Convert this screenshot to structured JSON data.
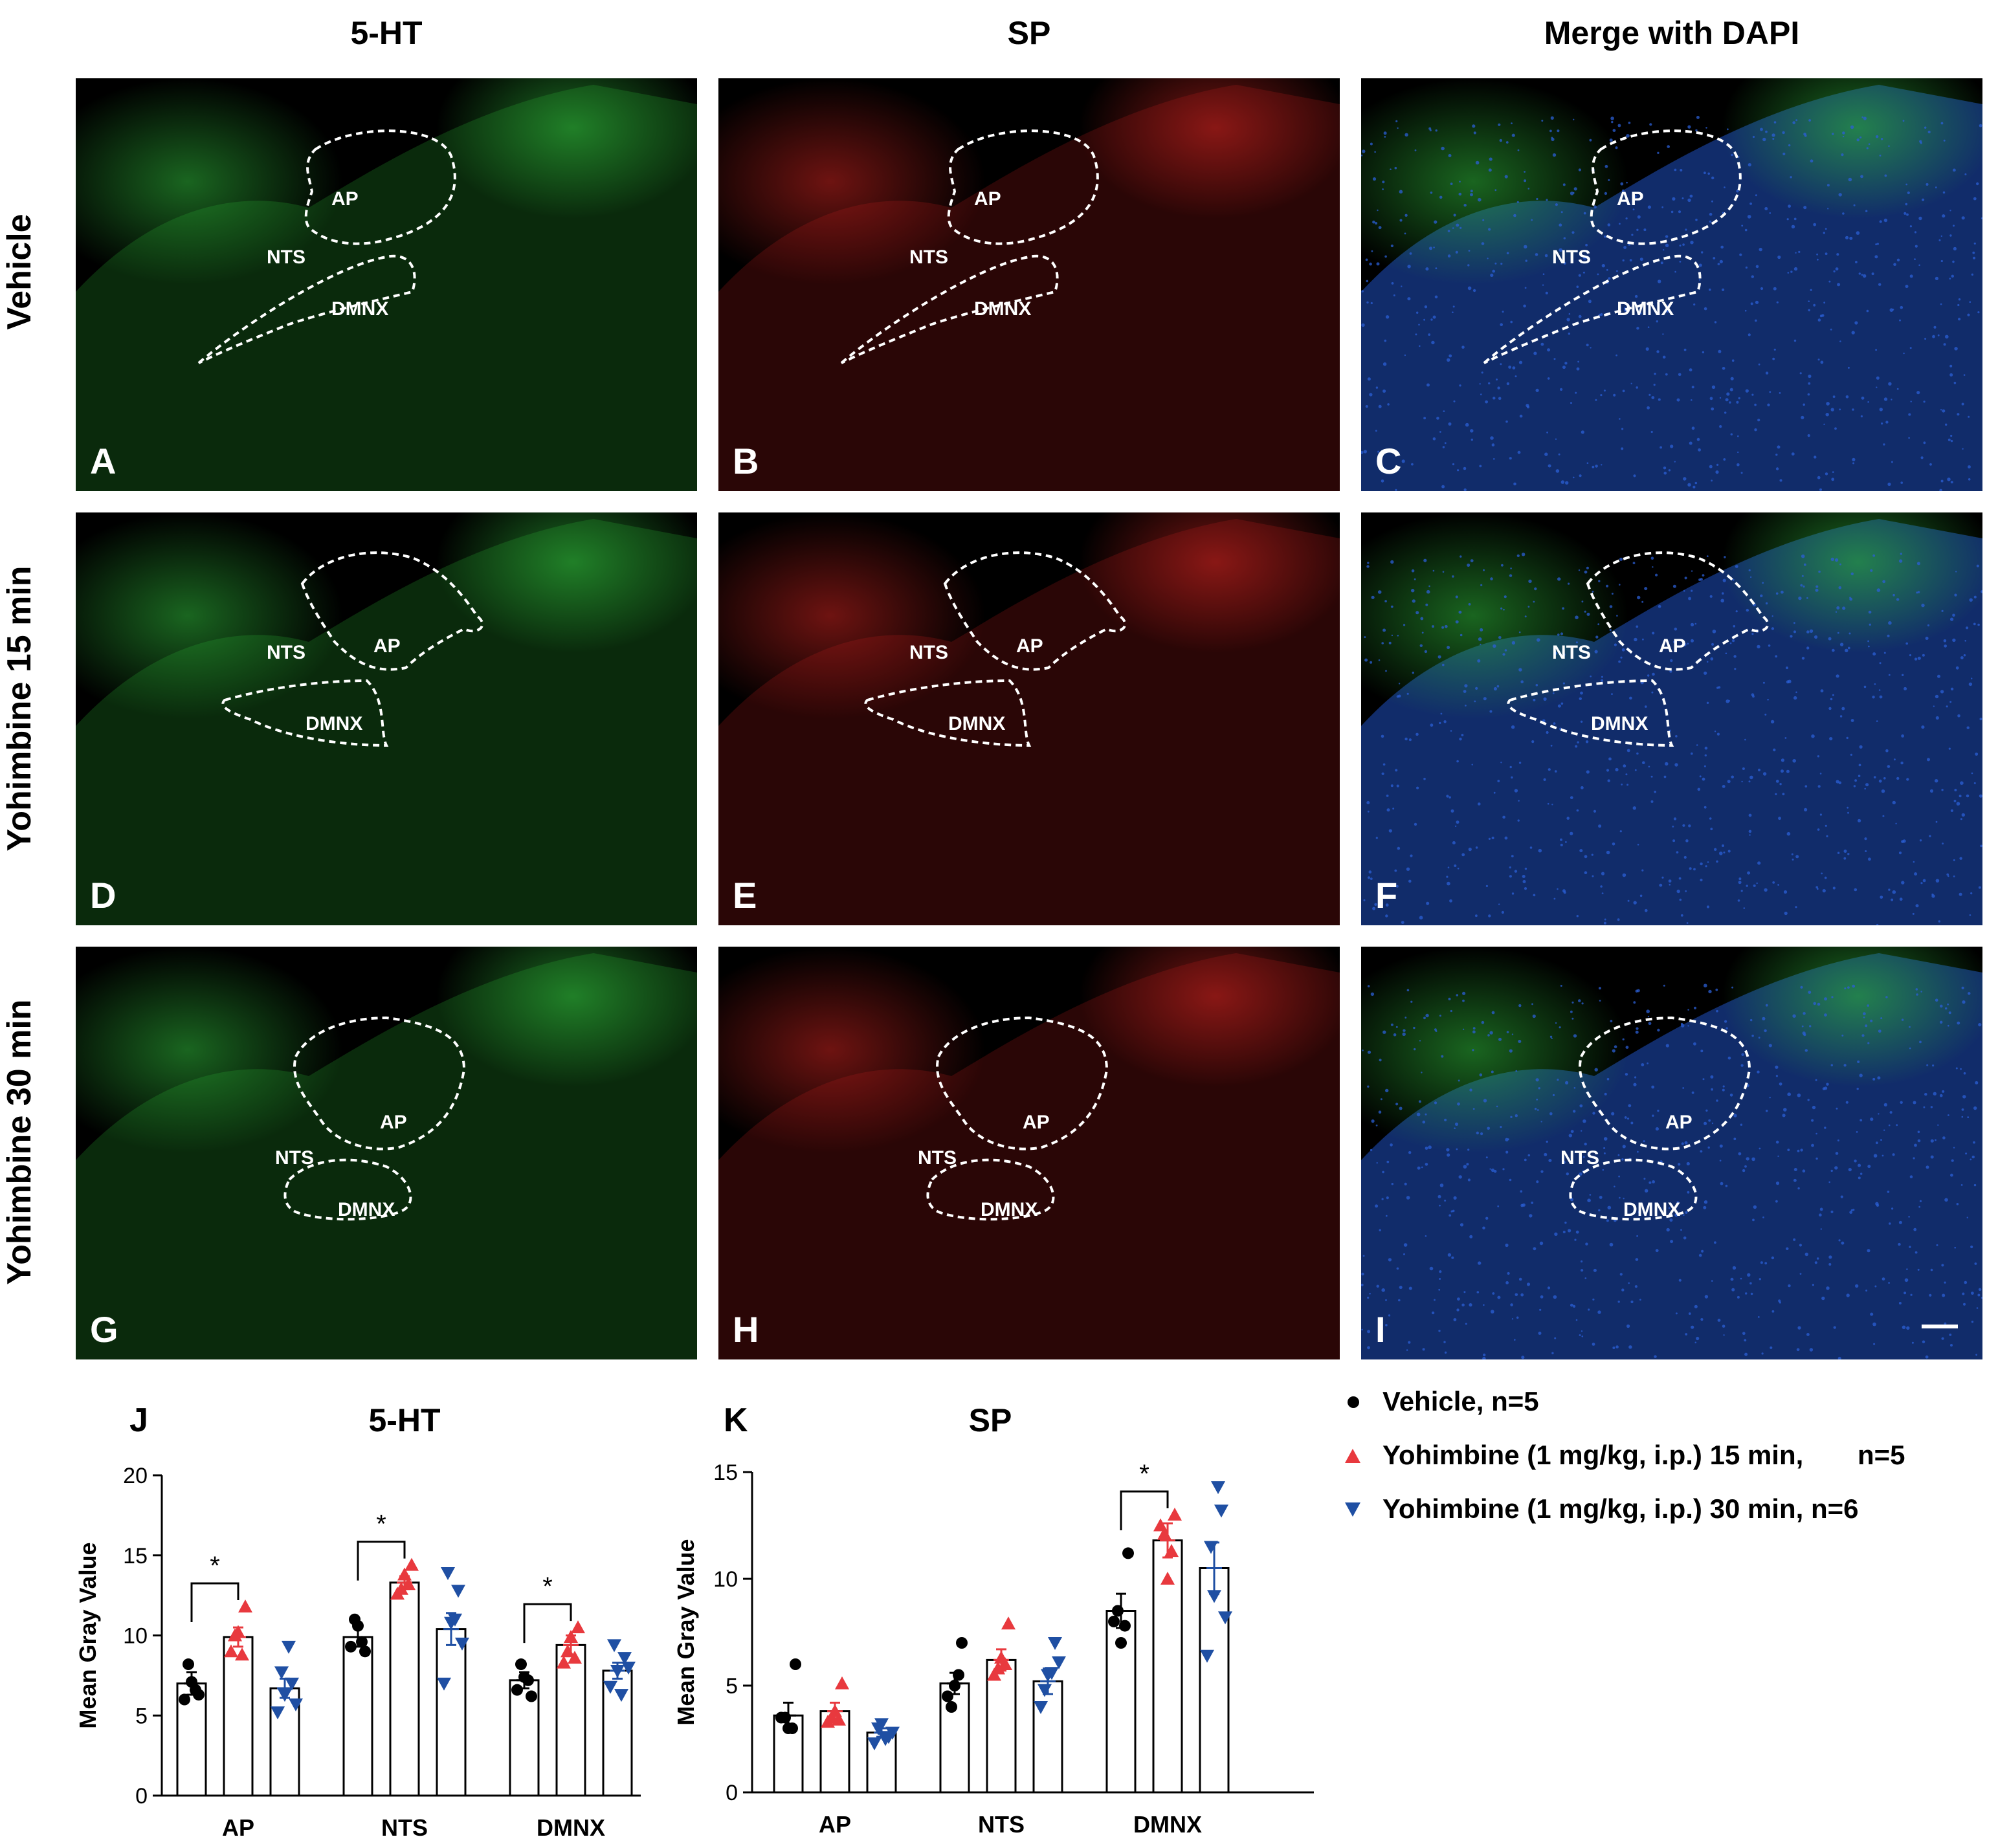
{
  "columns": [
    "5-HT",
    "SP",
    "Merge with DAPI"
  ],
  "rows": [
    "Vehicle",
    "Yohimbine 15 min",
    "Yohimbine 30 min"
  ],
  "panels": [
    {
      "letter": "A",
      "channel": "green"
    },
    {
      "letter": "B",
      "channel": "red"
    },
    {
      "letter": "C",
      "channel": "merge"
    },
    {
      "letter": "D",
      "channel": "green"
    },
    {
      "letter": "E",
      "channel": "red"
    },
    {
      "letter": "F",
      "channel": "merge"
    },
    {
      "letter": "G",
      "channel": "green"
    },
    {
      "letter": "H",
      "channel": "red"
    },
    {
      "letter": "I",
      "channel": "merge"
    }
  ],
  "region_labels": {
    "ap": "AP",
    "nts": "NTS",
    "dmnx": "DMNX"
  },
  "colors": {
    "vehicle": "#000000",
    "yoh15": "#e8393e",
    "yoh30": "#1f4fa3",
    "green": "#2fb83a",
    "red": "#c8231f",
    "blue": "#2b5fd6"
  },
  "legend": [
    {
      "label": "Vehicle, n=5",
      "marker": "circle",
      "color": "#000000"
    },
    {
      "label": "Yohimbine (1 mg/kg, i.p.) 15 min,",
      "n": "n=5",
      "marker": "triangle-up",
      "color": "#e8393e"
    },
    {
      "label": "Yohimbine (1 mg/kg, i.p.) 30 min, n=6",
      "marker": "triangle-down",
      "color": "#1f4fa3"
    }
  ],
  "chart_data": [
    {
      "panel": "J",
      "type": "bar",
      "title": "5-HT",
      "ylabel": "Mean Gray Value",
      "xlabel": "",
      "categories": [
        "AP",
        "NTS",
        "DMNX"
      ],
      "ylim": [
        0,
        20
      ],
      "yticks": [
        0,
        5,
        10,
        15,
        20
      ],
      "series": [
        {
          "group": "vehicle",
          "means": [
            7.0,
            9.9,
            7.2
          ],
          "sem": [
            0.7,
            0.6,
            0.5
          ],
          "points": [
            [
              6.0,
              7.1,
              6.3,
              8.2,
              6.6
            ],
            [
              9.3,
              10.6,
              9.0,
              11.0,
              9.6
            ],
            [
              6.6,
              7.4,
              6.2,
              8.2,
              7.2
            ]
          ]
        },
        {
          "group": "yoh15",
          "means": [
            9.9,
            13.3,
            9.4
          ],
          "sem": [
            0.6,
            0.4,
            0.6
          ],
          "points": [
            [
              9.0,
              10.2,
              11.8,
              10.0,
              8.8
            ],
            [
              12.6,
              13.8,
              14.4,
              12.9,
              13.2
            ],
            [
              8.3,
              9.9,
              10.5,
              9.0,
              8.6
            ]
          ]
        },
        {
          "group": "yoh30",
          "means": [
            6.7,
            10.4,
            7.8
          ],
          "sem": [
            0.6,
            1.0,
            0.5
          ],
          "points": [
            [
              5.2,
              6.3,
              7.0,
              7.7,
              9.3,
              5.7
            ],
            [
              7.0,
              10.8,
              12.8,
              13.9,
              11.0,
              9.5
            ],
            [
              6.8,
              7.8,
              8.6,
              9.4,
              6.3,
              8.0
            ]
          ]
        }
      ],
      "significance": [
        {
          "category": "AP",
          "pair": [
            "vehicle",
            "yoh15"
          ],
          "label": "*"
        },
        {
          "category": "NTS",
          "pair": [
            "vehicle",
            "yoh15"
          ],
          "label": "*"
        },
        {
          "category": "DMNX",
          "pair": [
            "vehicle",
            "yoh15"
          ],
          "label": "*"
        }
      ]
    },
    {
      "panel": "K",
      "type": "bar",
      "title": "SP",
      "ylabel": "Mean Gray Value",
      "xlabel": "",
      "categories": [
        "AP",
        "NTS",
        "DMNX"
      ],
      "ylim": [
        0,
        15
      ],
      "yticks": [
        0,
        5,
        10,
        15
      ],
      "series": [
        {
          "group": "vehicle",
          "means": [
            3.6,
            5.1,
            8.5
          ],
          "sem": [
            0.6,
            0.5,
            0.8
          ],
          "points": [
            [
              3.5,
              3.0,
              6.0,
              3.5,
              3.0
            ],
            [
              4.5,
              5.0,
              7.0,
              4.0,
              5.5
            ],
            [
              8.0,
              7.0,
              11.2,
              8.5,
              7.8
            ]
          ]
        },
        {
          "group": "yoh15",
          "means": [
            3.8,
            6.2,
            11.8
          ],
          "sem": [
            0.4,
            0.5,
            0.8
          ],
          "points": [
            [
              3.3,
              3.8,
              5.1,
              3.5,
              3.4
            ],
            [
              5.5,
              6.3,
              7.9,
              5.8,
              6.0
            ],
            [
              12.5,
              10.0,
              13.0,
              12.1,
              11.3
            ]
          ]
        },
        {
          "group": "yoh30",
          "means": [
            2.8,
            5.2,
            10.5
          ],
          "sem": [
            0.2,
            0.6,
            1.2
          ],
          "points": [
            [
              2.3,
              3.2,
              2.6,
              3.0,
              2.5,
              2.8
            ],
            [
              4.0,
              5.5,
              7.0,
              4.8,
              5.6,
              6.1
            ],
            [
              6.4,
              9.2,
              13.2,
              11.5,
              14.3,
              8.2
            ]
          ]
        }
      ],
      "significance": [
        {
          "category": "DMNX",
          "pair": [
            "vehicle",
            "yoh15"
          ],
          "label": "*"
        }
      ]
    }
  ]
}
